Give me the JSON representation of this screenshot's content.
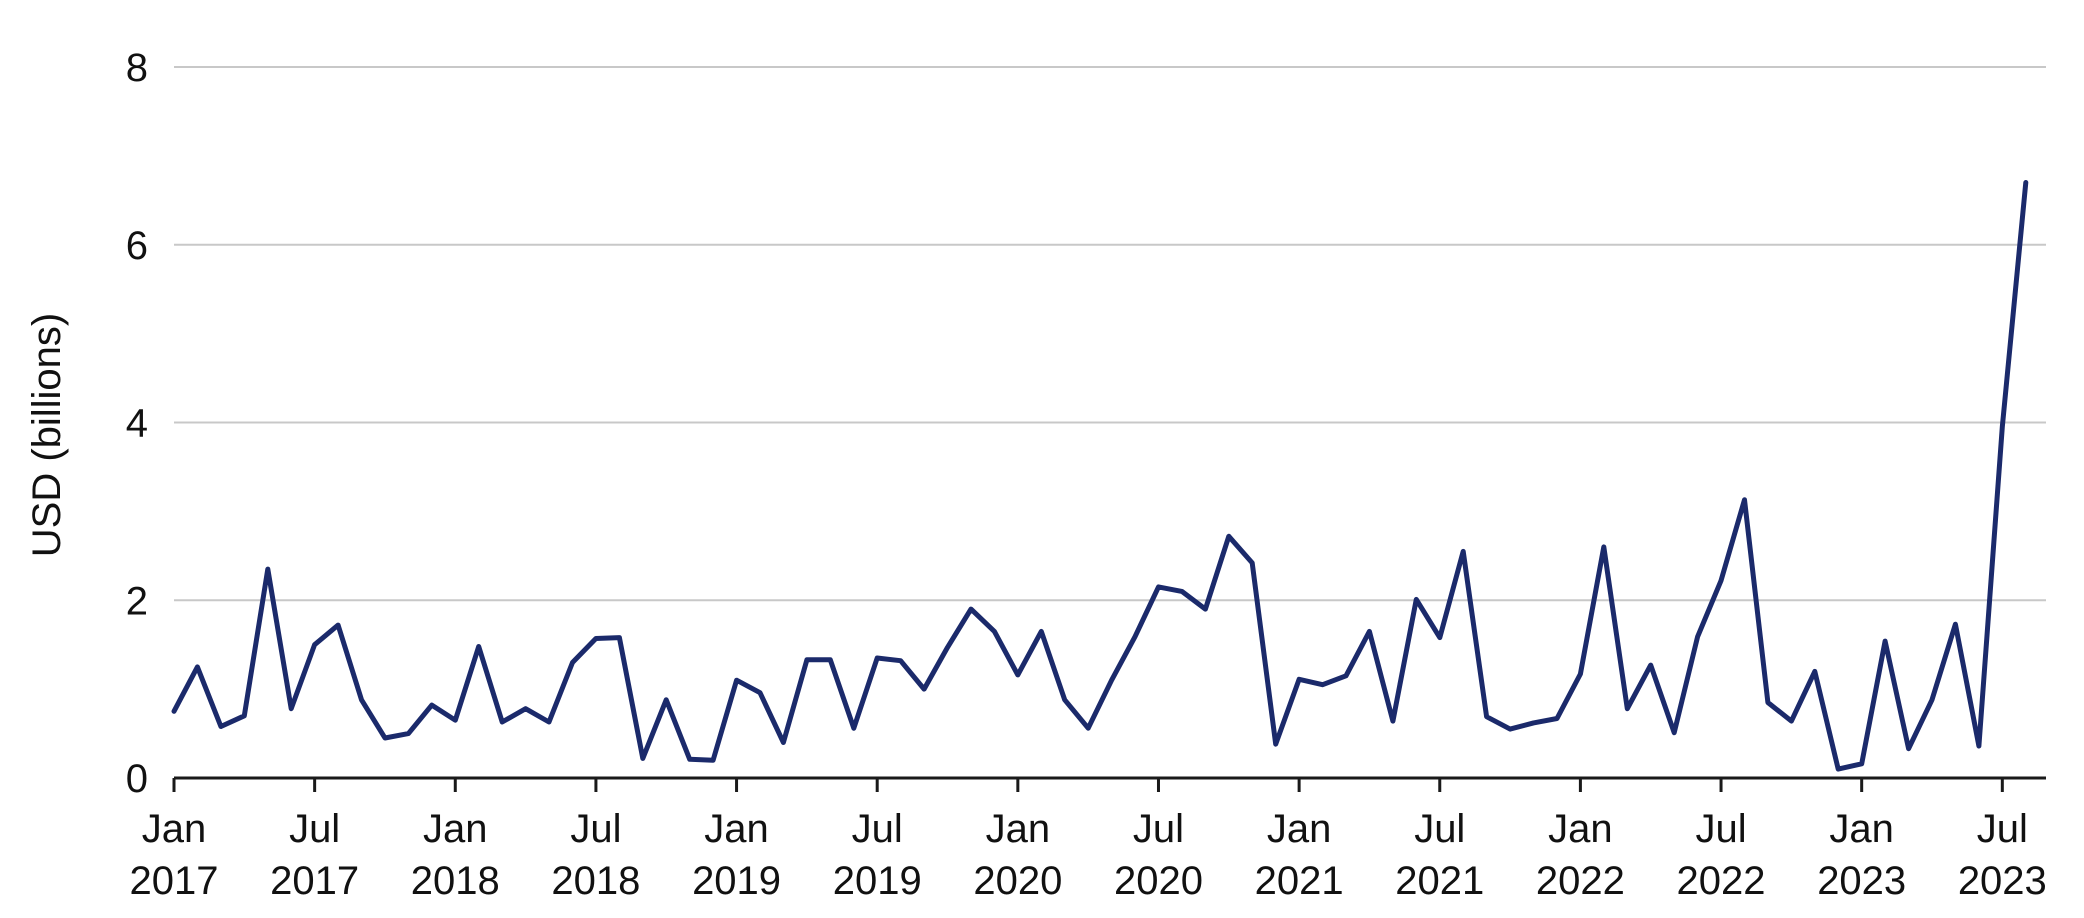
{
  "chart_data": {
    "type": "line",
    "title": "",
    "xlabel": "",
    "ylabel": "USD (billions)",
    "ylim": [
      0,
      8
    ],
    "yticks": [
      0,
      2,
      4,
      6,
      8
    ],
    "grid": true,
    "legend": "none",
    "x_start": "Jan 2017",
    "x_tick_labels": [
      {
        "month": "Jan",
        "year": "2017"
      },
      {
        "month": "Jul",
        "year": "2017"
      },
      {
        "month": "Jan",
        "year": "2018"
      },
      {
        "month": "Jul",
        "year": "2018"
      },
      {
        "month": "Jan",
        "year": "2019"
      },
      {
        "month": "Jul",
        "year": "2019"
      },
      {
        "month": "Jan",
        "year": "2020"
      },
      {
        "month": "Jul",
        "year": "2020"
      },
      {
        "month": "Jan",
        "year": "2021"
      },
      {
        "month": "Jul",
        "year": "2021"
      },
      {
        "month": "Jan",
        "year": "2022"
      },
      {
        "month": "Jul",
        "year": "2022"
      },
      {
        "month": "Jan",
        "year": "2023"
      },
      {
        "month": "Jul",
        "year": "2023"
      }
    ],
    "series": [
      {
        "color": "#1b2a6b",
        "values": [
          0.75,
          1.25,
          0.58,
          0.7,
          2.35,
          0.78,
          1.5,
          1.72,
          0.88,
          0.45,
          0.5,
          0.82,
          0.65,
          1.48,
          0.63,
          0.78,
          0.63,
          1.3,
          1.57,
          1.58,
          0.22,
          0.88,
          0.21,
          0.2,
          1.1,
          0.96,
          0.4,
          1.33,
          1.33,
          0.56,
          1.35,
          1.32,
          1.0,
          1.47,
          1.9,
          1.65,
          1.16,
          1.65,
          0.88,
          0.56,
          1.1,
          1.59,
          2.15,
          2.1,
          1.9,
          2.72,
          2.42,
          0.38,
          1.11,
          1.05,
          1.15,
          1.65,
          0.64,
          2.01,
          1.58,
          2.55,
          0.69,
          0.55,
          0.62,
          0.67,
          1.17,
          2.6,
          0.78,
          1.27,
          0.51,
          1.59,
          2.22,
          3.13,
          0.85,
          0.64,
          1.2,
          0.1,
          0.16,
          1.54,
          0.33,
          0.88,
          1.73,
          0.36,
          3.95,
          6.7
        ]
      }
    ]
  },
  "colors": {
    "grid": "#c8c8c8",
    "axis": "#1a1a1a",
    "line": "#1b2a6b"
  }
}
